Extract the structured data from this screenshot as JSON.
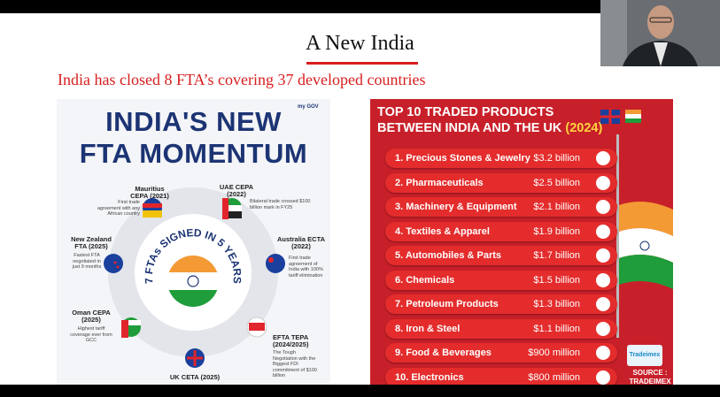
{
  "slide": {
    "title": "A New India",
    "subtitle": "India has closed 8 FTA’s covering 37 developed countries",
    "left": {
      "logo": "my GOV",
      "title_line1": "INDIA'S NEW",
      "title_line2": "FTA MOMENTUM",
      "center_text": "7 FTAs SIGNED IN 5 YEARS",
      "items": [
        {
          "title": "Mauritius CEPA (2021)",
          "desc": "First trade agreement with any African country"
        },
        {
          "title": "UAE CEPA (2022)",
          "desc": "Bilateral trade crossed $100 billion mark in FY25"
        },
        {
          "title": "Australia ECTA (2022)",
          "desc": "First trade agreement of India with 100% tariff elimination"
        },
        {
          "title": "EFTA TEPA (2024/2025)",
          "desc": "The Tough Negotiation with the Biggest FDI commitment of $100 billion"
        },
        {
          "title": "UK CETA (2025)",
          "desc": null
        },
        {
          "title": "Oman CEPA (2025)",
          "desc": "Highest tariff coverage ever from GCC"
        },
        {
          "title": "New Zealand FTA (2025)",
          "desc": "Fastest FTA negotiated in just 9 months"
        }
      ]
    },
    "right": {
      "title": "TOP 10 TRADED PRODUCTS BETWEEN INDIA AND THE UK",
      "year": "(2024)",
      "rows": [
        {
          "name": "1. Precious Stones & Jewelry",
          "value": "$3.2 billion"
        },
        {
          "name": "2. Pharmaceuticals",
          "value": "$2.5 billion"
        },
        {
          "name": "3. Machinery & Equipment",
          "value": "$2.1 billion"
        },
        {
          "name": "4. Textiles & Apparel",
          "value": "$1.9 billion"
        },
        {
          "name": "5. Automobiles & Parts",
          "value": "$1.7 billion"
        },
        {
          "name": "6. Chemicals",
          "value": "$1.5 billion"
        },
        {
          "name": "7. Petroleum Products",
          "value": "$1.3 billion"
        },
        {
          "name": "8. Iron & Steel",
          "value": "$1.1 billion"
        },
        {
          "name": "9. Food & Beverages",
          "value": "$900 million"
        },
        {
          "name": "10. Electronics",
          "value": "$800 million"
        }
      ],
      "logo": "Tradeimex",
      "source_label": "SOURCE :",
      "source": "TRADEIMEX"
    }
  }
}
